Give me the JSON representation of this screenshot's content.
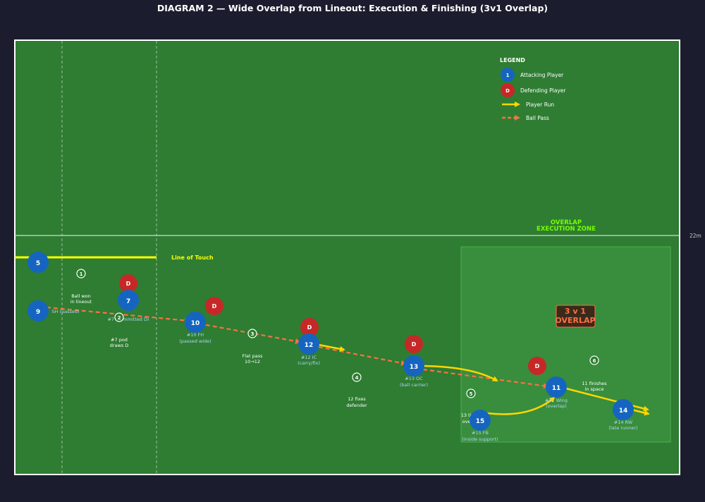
{
  "title": "DIAGRAM 2 — Wide Overlap from Lineout: Execution & Finishing (3v1 Overlap)",
  "colors": {
    "page_bg": "#1b1d2e",
    "pitch": "#2e7d32",
    "zone": "#388e3c",
    "attacker": "#1565c0",
    "defender": "#c62828",
    "run": "#ffd600",
    "pass": "#ff7043",
    "zone_label": "#76ff03",
    "overlap_text": "#ff7043"
  },
  "pitch": {
    "line_22_label": "22m",
    "line_of_touch_label": "Line of Touch",
    "zone_label_1": "OVERLAP",
    "zone_label_2": "EXECUTION ZONE",
    "overlap_box_1": "3 v 1",
    "overlap_box_2": "OVERLAP"
  },
  "legend": {
    "title": "LEGEND",
    "items": [
      {
        "symbol": "1",
        "label": "Attacking Player"
      },
      {
        "symbol": "D",
        "label": "Defending Player"
      },
      {
        "symbol": "",
        "label": "Player Run"
      },
      {
        "symbol": "",
        "label": "Ball Pass"
      }
    ]
  },
  "attackers": [
    {
      "id": "p5",
      "number": "5",
      "sub1": "",
      "sub2": ""
    },
    {
      "id": "p9",
      "number": "9",
      "sub1": "SH (passed)",
      "sub2": ""
    },
    {
      "id": "p7",
      "number": "7",
      "sub1": "#7 (committed D)",
      "sub2": ""
    },
    {
      "id": "p10",
      "number": "10",
      "sub1": "#10 FH",
      "sub2": "(passed wide)"
    },
    {
      "id": "p12",
      "number": "12",
      "sub1": "#12 IC",
      "sub2": "(carry/fix)"
    },
    {
      "id": "p13",
      "number": "13",
      "sub1": "#13 OC",
      "sub2": "(ball carrier)"
    },
    {
      "id": "p15",
      "number": "15",
      "sub1": "#15 FB",
      "sub2": "(inside support)"
    },
    {
      "id": "p11",
      "number": "11",
      "sub1": "#11 Wing",
      "sub2": "(overlap)"
    },
    {
      "id": "p14",
      "number": "14",
      "sub1": "#14 RW",
      "sub2": "(late runner)"
    }
  ],
  "defenders": [
    {
      "id": "d1",
      "label": "D"
    },
    {
      "id": "d2",
      "label": "D"
    },
    {
      "id": "d3",
      "label": "D"
    },
    {
      "id": "d4",
      "label": "D"
    },
    {
      "id": "d5",
      "label": "D"
    }
  ],
  "steps": [
    {
      "n": "1",
      "line1": "Ball won",
      "line2": "in lineout"
    },
    {
      "n": "2",
      "line1": "#7 pod",
      "line2": "draws D"
    },
    {
      "n": "3",
      "line1": "Flat pass",
      "line2": "10→12"
    },
    {
      "n": "4",
      "line1": "12 fixes",
      "line2": "defender"
    },
    {
      "n": "5",
      "line1": "13 times",
      "line2": "overlap"
    },
    {
      "n": "6",
      "line1": "11 finishes",
      "line2": "in space"
    }
  ]
}
